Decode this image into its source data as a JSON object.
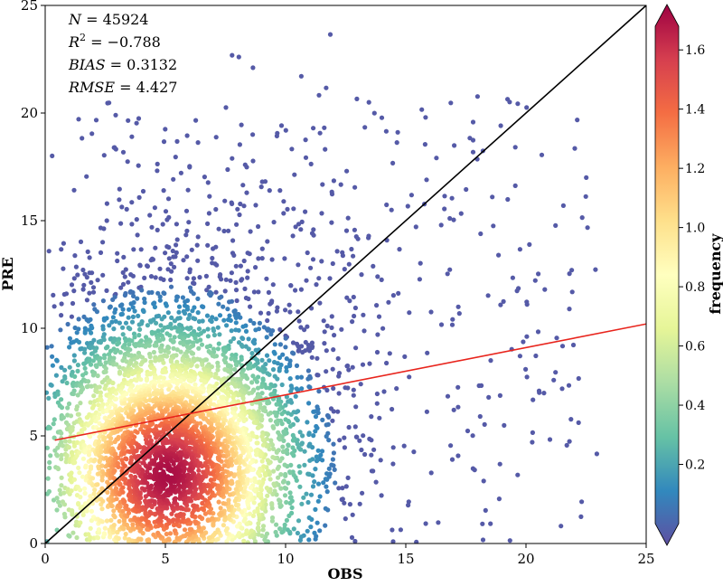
{
  "chart_data": {
    "type": "scatter",
    "xlabel": "OBS",
    "ylabel": "PRE",
    "xlim": [
      0,
      25
    ],
    "ylim": [
      0,
      25
    ],
    "x_ticks": [
      0,
      5,
      10,
      15,
      20,
      25
    ],
    "y_ticks": [
      0,
      5,
      10,
      15,
      20,
      25
    ],
    "annotations": {
      "n_label": "N",
      "n_value": "45924",
      "r2_label": "R",
      "r2_value": "−0.788",
      "bias_label": "BIAS",
      "bias_value": "0.3132",
      "rmse_label": "RMSE",
      "rmse_value": "4.427"
    },
    "density_peak": {
      "x": 5.1,
      "y": 3.2
    },
    "one_to_one_line": {
      "from": [
        0,
        0
      ],
      "to": [
        25,
        25
      ],
      "color": "#000000"
    },
    "fit_line": {
      "from": [
        0.4,
        4.8
      ],
      "to": [
        25,
        10.2
      ],
      "color": "#e8241c"
    },
    "colorbar": {
      "label": "frequency",
      "min": 0,
      "max": 1.68,
      "ticks": [
        "0.2",
        "0.4",
        "0.6",
        "0.8",
        "1.0",
        "1.2",
        "1.4",
        "1.6"
      ],
      "tick_values": [
        0.2,
        0.4,
        0.6,
        0.8,
        1.0,
        1.2,
        1.4,
        1.6
      ],
      "colormap": "Spectral_r",
      "colors": [
        "#5e4fa2",
        "#3288bd",
        "#66c2a5",
        "#abdda4",
        "#e6f598",
        "#ffffbf",
        "#fee08b",
        "#fdae61",
        "#f46d43",
        "#d53e4f",
        "#9e0142"
      ]
    },
    "grid": false
  }
}
